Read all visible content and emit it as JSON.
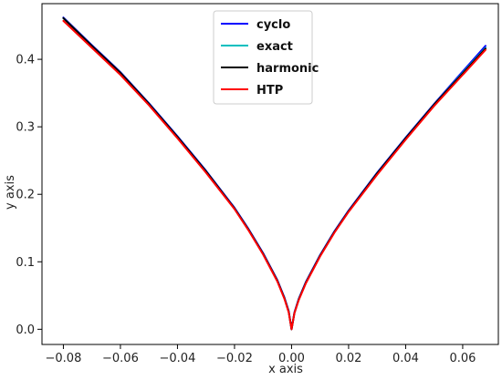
{
  "chart_data": {
    "type": "line",
    "title": "",
    "xlabel": "x axis",
    "ylabel": "y axis",
    "xlim": [
      -0.0875,
      0.0725
    ],
    "ylim": [
      -0.0225,
      0.4825
    ],
    "xticks": [
      -0.08,
      -0.06,
      -0.04,
      -0.02,
      0.0,
      0.02,
      0.04,
      0.06
    ],
    "xtick_labels": [
      "−0.08",
      "−0.06",
      "−0.04",
      "−0.02",
      "0.00",
      "0.02",
      "0.04",
      "0.06"
    ],
    "yticks": [
      0.0,
      0.1,
      0.2,
      0.3,
      0.4
    ],
    "ytick_labels": [
      "0.0",
      "0.1",
      "0.2",
      "0.3",
      "0.4"
    ],
    "grid": false,
    "legend_position": "top-center",
    "series": [
      {
        "name": "cyclo",
        "color": "#0000ff",
        "x": [
          -0.08,
          -0.07,
          -0.06,
          -0.05,
          -0.04,
          -0.03,
          -0.02,
          -0.015,
          -0.01,
          -0.005,
          -0.0025,
          -0.001,
          0.0,
          0.001,
          0.0025,
          0.005,
          0.01,
          0.015,
          0.02,
          0.03,
          0.04,
          0.05,
          0.06,
          0.068
        ],
        "y": [
          0.462,
          0.421,
          0.381,
          0.335,
          0.286,
          0.235,
          0.18,
          0.148,
          0.113,
          0.073,
          0.047,
          0.027,
          0.0,
          0.025,
          0.045,
          0.07,
          0.11,
          0.145,
          0.176,
          0.232,
          0.284,
          0.334,
          0.382,
          0.42
        ]
      },
      {
        "name": "exact",
        "color": "#00bfbf",
        "x": [
          -0.08,
          -0.07,
          -0.06,
          -0.05,
          -0.04,
          -0.03,
          -0.02,
          -0.015,
          -0.01,
          -0.005,
          -0.0025,
          -0.001,
          0.0,
          0.001,
          0.0025,
          0.005,
          0.01,
          0.015,
          0.02,
          0.03,
          0.04,
          0.05,
          0.06,
          0.068
        ],
        "y": [
          0.461,
          0.42,
          0.38,
          0.334,
          0.285,
          0.234,
          0.179,
          0.147,
          0.112,
          0.072,
          0.046,
          0.026,
          0.0,
          0.024,
          0.044,
          0.069,
          0.109,
          0.144,
          0.175,
          0.231,
          0.283,
          0.333,
          0.38,
          0.417
        ]
      },
      {
        "name": "harmonic",
        "color": "#000000",
        "x": [
          -0.08,
          -0.07,
          -0.06,
          -0.05,
          -0.04,
          -0.03,
          -0.02,
          -0.015,
          -0.01,
          -0.005,
          -0.0025,
          -0.001,
          0.0,
          0.001,
          0.0025,
          0.005,
          0.01,
          0.015,
          0.02,
          0.03,
          0.04,
          0.05,
          0.06,
          0.068
        ],
        "y": [
          0.461,
          0.42,
          0.38,
          0.334,
          0.285,
          0.234,
          0.179,
          0.147,
          0.112,
          0.072,
          0.046,
          0.026,
          0.0,
          0.024,
          0.044,
          0.069,
          0.109,
          0.144,
          0.175,
          0.231,
          0.283,
          0.333,
          0.379,
          0.416
        ]
      },
      {
        "name": "HTP",
        "color": "#ff0000",
        "x": [
          -0.08,
          -0.07,
          -0.06,
          -0.05,
          -0.04,
          -0.03,
          -0.02,
          -0.015,
          -0.01,
          -0.005,
          -0.0025,
          -0.001,
          0.0,
          0.001,
          0.0025,
          0.005,
          0.01,
          0.015,
          0.02,
          0.03,
          0.04,
          0.05,
          0.06,
          0.068
        ],
        "y": [
          0.457,
          0.417,
          0.377,
          0.332,
          0.283,
          0.232,
          0.178,
          0.146,
          0.111,
          0.071,
          0.045,
          0.025,
          0.0,
          0.024,
          0.043,
          0.068,
          0.108,
          0.143,
          0.174,
          0.229,
          0.281,
          0.331,
          0.377,
          0.414
        ]
      }
    ]
  }
}
